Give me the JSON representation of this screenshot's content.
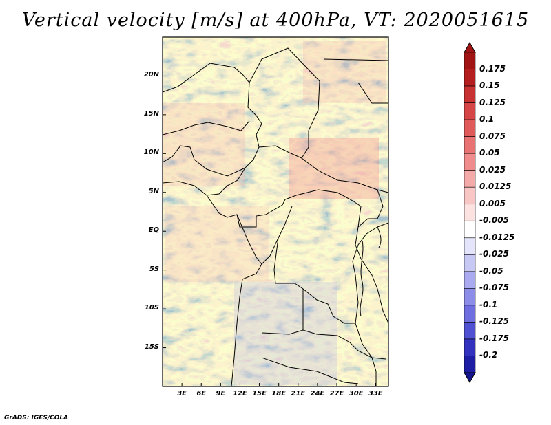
{
  "title": "Vertical velocity [m/s] at 400hPa, VT: 2020051615",
  "credit": "GrADS: IGES/COLA",
  "map": {
    "lon_range": [
      0,
      35
    ],
    "lat_range": [
      -20,
      25
    ],
    "lat_ticks": [
      {
        "value": 20,
        "label": "20N"
      },
      {
        "value": 15,
        "label": "15N"
      },
      {
        "value": 10,
        "label": "10N"
      },
      {
        "value": 5,
        "label": "5N"
      },
      {
        "value": 0,
        "label": "EQ"
      },
      {
        "value": -5,
        "label": "5S"
      },
      {
        "value": -10,
        "label": "10S"
      },
      {
        "value": -15,
        "label": "15S"
      }
    ],
    "lon_ticks": [
      {
        "value": 3,
        "label": "3E"
      },
      {
        "value": 6,
        "label": "6E"
      },
      {
        "value": 9,
        "label": "9E"
      },
      {
        "value": 12,
        "label": "12E"
      },
      {
        "value": 15,
        "label": "15E"
      },
      {
        "value": 18,
        "label": "18E"
      },
      {
        "value": 21,
        "label": "21E"
      },
      {
        "value": 24,
        "label": "24E"
      },
      {
        "value": 27,
        "label": "27E"
      },
      {
        "value": 30,
        "label": "30E"
      },
      {
        "value": 33,
        "label": "33E"
      }
    ]
  },
  "colorbar": {
    "levels": [
      {
        "label": "0.175",
        "color": "#b41e1e"
      },
      {
        "label": "0.15",
        "color": "#c83232"
      },
      {
        "label": "0.125",
        "color": "#d74646"
      },
      {
        "label": "0.1",
        "color": "#e15a5a"
      },
      {
        "label": "0.075",
        "color": "#e97272"
      },
      {
        "label": "0.05",
        "color": "#f08c8c"
      },
      {
        "label": "0.025",
        "color": "#f5aaaa"
      },
      {
        "label": "0.0125",
        "color": "#f9c6c6"
      },
      {
        "label": "0.005",
        "color": "#fde2e2"
      },
      {
        "label": "-0.005",
        "color": "#ffffff"
      },
      {
        "label": "-0.0125",
        "color": "#e4e4fb"
      },
      {
        "label": "-0.025",
        "color": "#c8c8f5"
      },
      {
        "label": "-0.05",
        "color": "#aaaaf0"
      },
      {
        "label": "-0.075",
        "color": "#8c8ce9"
      },
      {
        "label": "-0.1",
        "color": "#6e6ee0"
      },
      {
        "label": "-0.125",
        "color": "#5050d2"
      },
      {
        "label": "-0.175",
        "color": "#3232be"
      },
      {
        "label": "-0.2",
        "color": "#1e1ea5"
      }
    ],
    "top_color": "#a01414",
    "bottom_color": "#14148c"
  }
}
